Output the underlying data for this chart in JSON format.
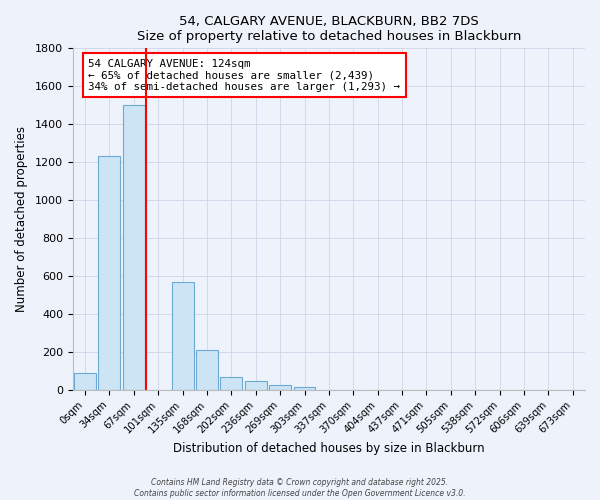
{
  "title": "54, CALGARY AVENUE, BLACKBURN, BB2 7DS",
  "subtitle": "Size of property relative to detached houses in Blackburn",
  "xlabel": "Distribution of detached houses by size in Blackburn",
  "ylabel": "Number of detached properties",
  "bar_labels": [
    "0sqm",
    "34sqm",
    "67sqm",
    "101sqm",
    "135sqm",
    "168sqm",
    "202sqm",
    "236sqm",
    "269sqm",
    "303sqm",
    "337sqm",
    "370sqm",
    "404sqm",
    "437sqm",
    "471sqm",
    "505sqm",
    "538sqm",
    "572sqm",
    "606sqm",
    "639sqm",
    "673sqm"
  ],
  "bar_values": [
    90,
    1230,
    1500,
    0,
    570,
    210,
    65,
    45,
    25,
    15,
    0,
    0,
    0,
    0,
    0,
    0,
    0,
    0,
    0,
    0,
    0
  ],
  "bar_color": "#cde4f5",
  "bar_edge_color": "#6aaad4",
  "vline_x": 2.5,
  "vline_color": "red",
  "annotation_text": "54 CALGARY AVENUE: 124sqm\n← 65% of detached houses are smaller (2,439)\n34% of semi-detached houses are larger (1,293) →",
  "annotation_box_color": "white",
  "annotation_box_edge": "red",
  "ylim": [
    0,
    1800
  ],
  "yticks": [
    0,
    200,
    400,
    600,
    800,
    1000,
    1200,
    1400,
    1600,
    1800
  ],
  "footer1": "Contains HM Land Registry data © Crown copyright and database right 2025.",
  "footer2": "Contains public sector information licensed under the Open Government Licence v3.0.",
  "bg_color": "#eef3fb",
  "grid_color": "#cdd5e8"
}
